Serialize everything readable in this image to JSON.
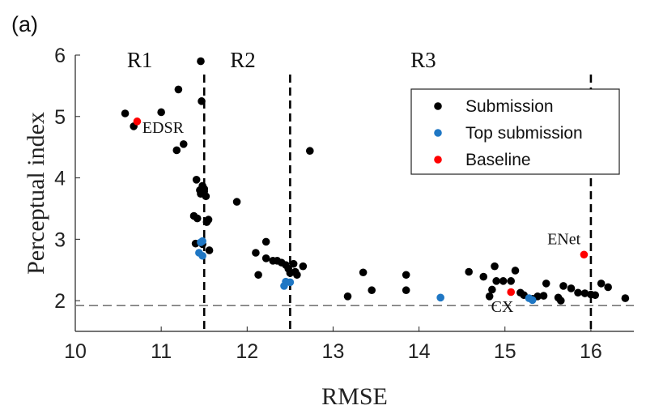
{
  "chart_data": {
    "type": "scatter",
    "panel_label": "(a)",
    "xlabel": "RMSE",
    "ylabel": "Perceptual index",
    "xlim": [
      10,
      16.5
    ],
    "ylim": [
      1.5,
      6
    ],
    "xticks": [
      "10",
      "11",
      "12",
      "13",
      "14",
      "15",
      "16"
    ],
    "yticks": [
      "2",
      "3",
      "4",
      "5",
      "6"
    ],
    "grid": false,
    "legend_position": "top-right",
    "regions": [
      {
        "label": "R1",
        "x": 10.75
      },
      {
        "label": "R2",
        "x": 11.95
      },
      {
        "label": "R3",
        "x": 14.05
      }
    ],
    "vlines": [
      11.5,
      12.5,
      16.0
    ],
    "hline": 1.92,
    "series": [
      {
        "name": "Submission",
        "color": "#000000",
        "points": [
          [
            10.58,
            5.05
          ],
          [
            10.68,
            4.84
          ],
          [
            11.0,
            5.07
          ],
          [
            11.18,
            4.45
          ],
          [
            11.2,
            5.44
          ],
          [
            11.26,
            4.55
          ],
          [
            11.46,
            5.9
          ],
          [
            11.47,
            5.25
          ],
          [
            11.41,
            3.97
          ],
          [
            11.45,
            3.8
          ],
          [
            11.48,
            3.87
          ],
          [
            11.5,
            3.82
          ],
          [
            11.52,
            3.7
          ],
          [
            11.46,
            3.74
          ],
          [
            11.5,
            3.78
          ],
          [
            11.38,
            3.38
          ],
          [
            11.42,
            3.34
          ],
          [
            11.53,
            3.28
          ],
          [
            11.55,
            3.32
          ],
          [
            11.4,
            2.93
          ],
          [
            11.48,
            2.92
          ],
          [
            11.56,
            2.82
          ],
          [
            11.88,
            3.61
          ],
          [
            12.1,
            2.78
          ],
          [
            12.13,
            2.42
          ],
          [
            12.22,
            2.96
          ],
          [
            12.22,
            2.69
          ],
          [
            12.3,
            2.65
          ],
          [
            12.35,
            2.65
          ],
          [
            12.4,
            2.62
          ],
          [
            12.45,
            2.58
          ],
          [
            12.48,
            2.52
          ],
          [
            12.5,
            2.45
          ],
          [
            12.54,
            2.6
          ],
          [
            12.56,
            2.47
          ],
          [
            12.58,
            2.42
          ],
          [
            12.65,
            2.56
          ],
          [
            12.73,
            4.44
          ],
          [
            13.17,
            2.07
          ],
          [
            13.35,
            2.46
          ],
          [
            13.45,
            2.17
          ],
          [
            13.85,
            2.42
          ],
          [
            13.85,
            2.17
          ],
          [
            14.58,
            2.47
          ],
          [
            14.75,
            2.39
          ],
          [
            14.82,
            2.07
          ],
          [
            14.85,
            2.18
          ],
          [
            14.88,
            2.56
          ],
          [
            14.9,
            2.32
          ],
          [
            14.98,
            2.32
          ],
          [
            15.07,
            2.32
          ],
          [
            15.12,
            2.49
          ],
          [
            15.18,
            2.13
          ],
          [
            15.22,
            2.09
          ],
          [
            15.32,
            2.03
          ],
          [
            15.38,
            2.07
          ],
          [
            15.45,
            2.08
          ],
          [
            15.48,
            2.28
          ],
          [
            15.62,
            2.05
          ],
          [
            15.68,
            2.24
          ],
          [
            15.77,
            2.2
          ],
          [
            15.85,
            2.13
          ],
          [
            15.93,
            2.12
          ],
          [
            16.0,
            2.1
          ],
          [
            16.05,
            2.09
          ],
          [
            16.12,
            2.28
          ],
          [
            16.2,
            2.22
          ],
          [
            16.4,
            2.04
          ],
          [
            15.65,
            2.0
          ]
        ]
      },
      {
        "name": "Top submission",
        "color": "#1f77c4",
        "points": [
          [
            11.46,
            2.95
          ],
          [
            11.48,
            2.97
          ],
          [
            11.44,
            2.78
          ],
          [
            11.48,
            2.73
          ],
          [
            12.43,
            2.24
          ],
          [
            12.45,
            2.31
          ],
          [
            12.5,
            2.3
          ],
          [
            14.25,
            2.05
          ],
          [
            15.28,
            2.04
          ],
          [
            15.32,
            2.01
          ]
        ]
      },
      {
        "name": "Baseline",
        "color": "#ff0000",
        "points": [
          [
            10.72,
            4.92
          ],
          [
            15.07,
            2.14
          ],
          [
            15.92,
            2.75
          ]
        ]
      }
    ],
    "annotations": [
      {
        "text": "EDSR",
        "x": 10.78,
        "y": 4.73,
        "anchor": "start"
      },
      {
        "text": "CX",
        "x": 14.97,
        "y": 1.82,
        "anchor": "middle"
      },
      {
        "text": "ENet",
        "x": 15.88,
        "y": 2.92,
        "anchor": "end"
      }
    ]
  }
}
